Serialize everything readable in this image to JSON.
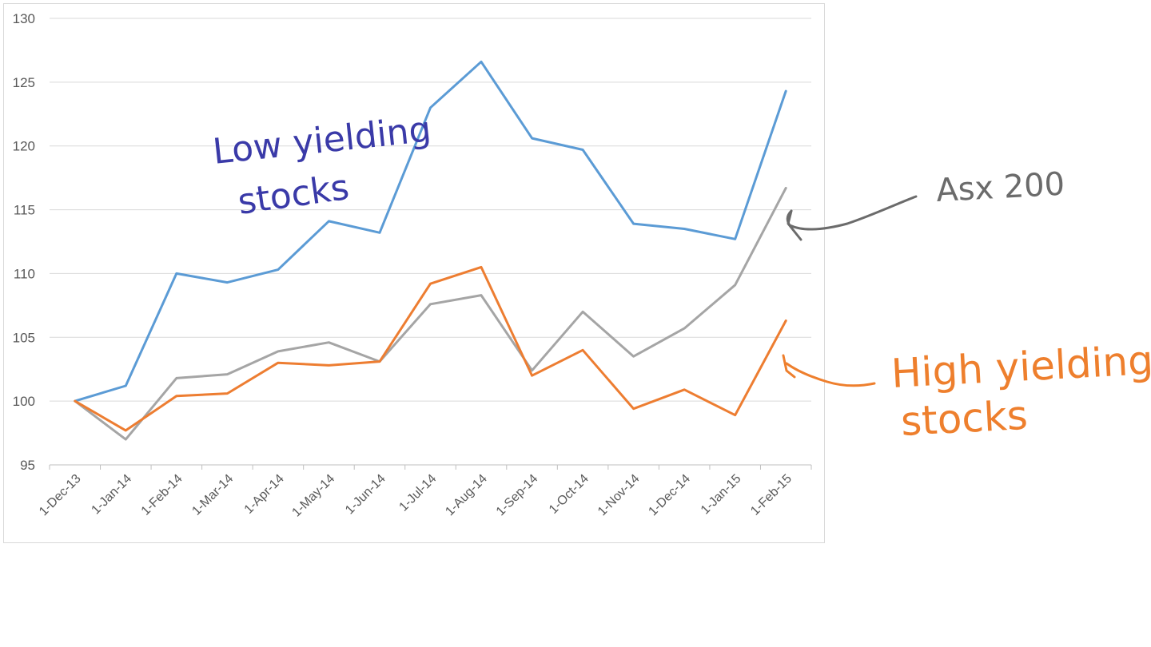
{
  "chart_data": {
    "type": "line",
    "title": "",
    "xlabel": "",
    "ylabel": "",
    "ylim": [
      95,
      130
    ],
    "yticks": [
      95,
      100,
      105,
      110,
      115,
      120,
      125,
      130
    ],
    "grid": "horizontal",
    "legend": "none",
    "categories": [
      "1-Dec-13",
      "1-Jan-14",
      "1-Feb-14",
      "1-Mar-14",
      "1-Apr-14",
      "1-May-14",
      "1-Jun-14",
      "1-Jul-14",
      "1-Aug-14",
      "1-Sep-14",
      "1-Oct-14",
      "1-Nov-14",
      "1-Dec-14",
      "1-Jan-15",
      "1-Feb-15"
    ],
    "series": [
      {
        "color": "#5b9bd5",
        "values": [
          100,
          101.2,
          110,
          109.3,
          110.3,
          114.1,
          113.2,
          123,
          126.6,
          120.6,
          119.7,
          113.9,
          113.5,
          112.7,
          124.3
        ]
      },
      {
        "color": "#a5a5a5",
        "values": [
          100,
          97,
          101.8,
          102.1,
          103.9,
          104.6,
          103.1,
          107.6,
          108.3,
          102.4,
          107,
          103.5,
          105.7,
          109.1,
          116.7
        ]
      },
      {
        "color": "#ed7d31",
        "values": [
          100,
          97.7,
          100.4,
          100.6,
          103,
          102.8,
          103.1,
          109.2,
          110.5,
          102,
          104,
          99.4,
          100.9,
          98.9,
          106.3
        ]
      }
    ],
    "annotations": {
      "low_line1": "Low yielding",
      "low_line2": "stocks",
      "asx": "Asx 200",
      "high_line1": "High yielding",
      "high_line2": "stocks",
      "low_color": "#3a3aa8",
      "asx_color": "#6b6b6b",
      "high_color": "#ee7f2d"
    }
  }
}
